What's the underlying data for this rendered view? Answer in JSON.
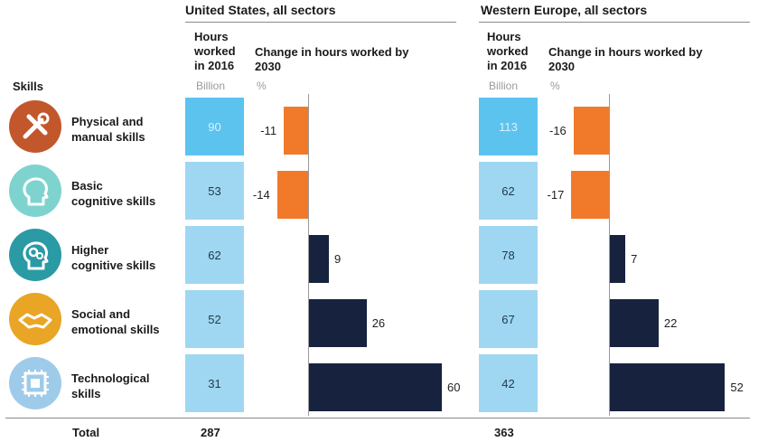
{
  "header": {
    "skills_label": "Skills",
    "regions": [
      {
        "title": "United States, all sectors",
        "hours_header": "Hours worked in 2016",
        "hours_unit": "Billion",
        "change_header": "Change in hours worked by 2030",
        "change_unit": "%"
      },
      {
        "title": "Western Europe, all sectors",
        "hours_header": "Hours worked in 2016",
        "hours_unit": "Billion",
        "change_header": "Change in hours worked by 2030",
        "change_unit": "%"
      }
    ]
  },
  "skills": [
    {
      "label_line1": "Physical and",
      "label_line2": "manual skills",
      "icon": "tools-icon",
      "icon_color": "#c2572c"
    },
    {
      "label_line1": "Basic",
      "label_line2": "cognitive skills",
      "icon": "head-icon",
      "icon_color": "#7fd3cf"
    },
    {
      "label_line1": "Higher",
      "label_line2": "cognitive skills",
      "icon": "gears-head-icon",
      "icon_color": "#2a9aa5"
    },
    {
      "label_line1": "Social and",
      "label_line2": "emotional skills",
      "icon": "handshake-icon",
      "icon_color": "#e9a525"
    },
    {
      "label_line1": "Technological",
      "label_line2": "skills",
      "icon": "chip-icon",
      "icon_color": "#9fcbea"
    }
  ],
  "chart_data": {
    "type": "bar",
    "categories": [
      "Physical and manual skills",
      "Basic cognitive skills",
      "Higher cognitive skills",
      "Social and emotional skills",
      "Technological skills"
    ],
    "regions": [
      {
        "name": "United States, all sectors",
        "hours_2016_billion": [
          90,
          53,
          62,
          52,
          31
        ],
        "change_2030_pct": [
          -11,
          -14,
          9,
          26,
          60
        ],
        "total": 287
      },
      {
        "name": "Western Europe, all sectors",
        "hours_2016_billion": [
          113,
          62,
          78,
          67,
          42
        ],
        "change_2030_pct": [
          -16,
          -17,
          7,
          22,
          52
        ],
        "total": 363
      }
    ]
  },
  "total_label": "Total",
  "colors": {
    "hours_shade_high": "#5cc3ee",
    "hours_shade_low": "#9fd7f2",
    "negative": "#f07a2a",
    "positive": "#17233e"
  }
}
